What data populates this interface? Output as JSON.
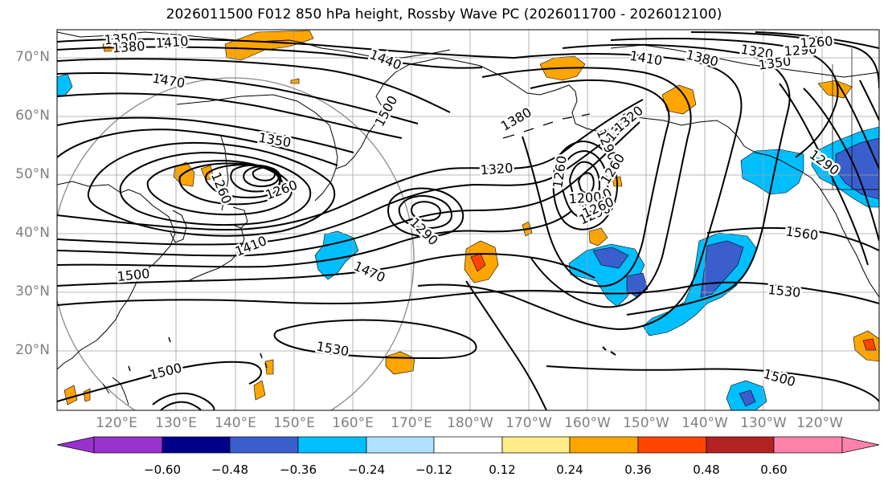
{
  "title": "2026011500 F012 850 hPa height, Rossby Wave PC (2026011700 - 2026012100)",
  "lat_labels": [
    "70°N",
    "60°N",
    "50°N",
    "40°N",
    "30°N",
    "20°N"
  ],
  "lon_labels": [
    "120°E",
    "130°E",
    "140°E",
    "150°E",
    "160°E",
    "170°E",
    "180°W",
    "170°W",
    "160°W",
    "150°W",
    "140°W",
    "130°W",
    "120°W"
  ],
  "contour_labels": [
    "1350",
    "1380",
    "1410",
    "1440",
    "1470",
    "1500",
    "1260",
    "1260",
    "1320",
    "1380",
    "1410",
    "1380",
    "1320",
    "1350",
    "1290",
    "1260",
    "1350",
    "1290",
    "1260",
    "1380",
    "1320",
    "1500",
    "1470",
    "1410",
    "1290",
    "1260",
    "1290",
    "1230",
    "1200",
    "1290",
    "1260",
    "1560",
    "1530",
    "1530",
    "1500",
    "1500"
  ],
  "colorbar": {
    "ticks": [
      "−0.60",
      "−0.48",
      "−0.36",
      "−0.24",
      "−0.12",
      "0.12",
      "0.24",
      "0.36",
      "0.48",
      "0.60"
    ],
    "colors": [
      "#9932cc",
      "#00008b",
      "#3a5fcd",
      "#00bfff",
      "#b0e2ff",
      "#ffffff",
      "#ffec8b",
      "#ffa500",
      "#ff4500",
      "#b22222",
      "#ff82ab"
    ]
  },
  "shading_colors": {
    "neg_light": "#00bfff",
    "neg_mid": "#3a5fcd",
    "pos_light": "#ffa500",
    "pos_strong": "#ff4500",
    "pos_pale": "#ffec8b"
  }
}
